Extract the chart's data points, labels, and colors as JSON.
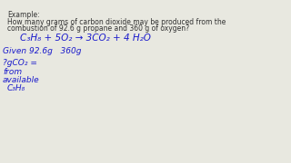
{
  "background_color": "#e8e8e0",
  "text_color_black": "#333333",
  "text_color_blue": "#1a1acc",
  "example_label": "Example:",
  "q_line1": "How many grams of carbon dioxide may be produced from the",
  "q_line2": "combustion of 92.6 g propane and 360 g of oxygen?",
  "equation": "C₃H₈ + 5O₂ → 3CO₂ + 4 H₂O",
  "given_line": "Given 92.6g   360g",
  "calc1": "?gCO₂ =",
  "calc2": "from",
  "calc3": "available",
  "calc4": "C₃H₈",
  "fs_small": 5.5,
  "fs_eq": 7.5,
  "fs_given": 6.5
}
